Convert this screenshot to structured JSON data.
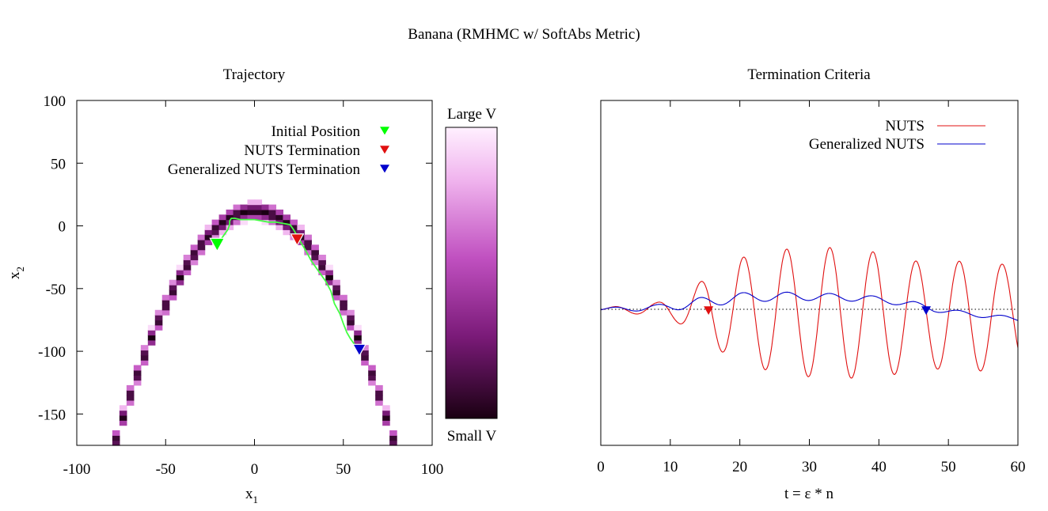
{
  "suptitle": "Banana (RMHMC w/ SoftAbs Metric)",
  "colors": {
    "nuts": "#e01010",
    "generalized": "#0000cc",
    "initial": "#00ff00",
    "trajectory": "#44ff44"
  },
  "chart_data": [
    {
      "type": "heatmap",
      "title": "Trajectory",
      "xlabel": "x",
      "xlabel_sub": "1",
      "ylabel": "x",
      "ylabel_sub": "2",
      "xlim": [
        -100,
        100
      ],
      "ylim": [
        -175,
        100
      ],
      "xticks": [
        -100,
        -50,
        0,
        50,
        100
      ],
      "yticks": [
        100,
        50,
        0,
        -50,
        -100,
        -150
      ],
      "density": {
        "model": "banana",
        "ridge": "x2 = 12 - 0.03 * x1^2",
        "band_half_width": 8,
        "grid_step": 4
      },
      "colorbar": {
        "top_label": "Large V",
        "bottom_label": "Small V"
      },
      "legend": {
        "position": "top-right",
        "entries": [
          {
            "label": "Initial Position",
            "color_key": "initial"
          },
          {
            "label": "NUTS Termination",
            "color_key": "nuts"
          },
          {
            "label": "Generalized NUTS Termination",
            "color_key": "generalized"
          }
        ]
      },
      "trajectory": [
        [
          -21,
          -15
        ],
        [
          -18,
          -9
        ],
        [
          -15,
          -3
        ],
        [
          -14,
          1
        ],
        [
          -14,
          4
        ],
        [
          -13,
          6
        ],
        [
          -11,
          6
        ],
        [
          -8,
          5
        ],
        [
          -4,
          5
        ],
        [
          0,
          5
        ],
        [
          4,
          4
        ],
        [
          8,
          3
        ],
        [
          12,
          3
        ],
        [
          16,
          2
        ],
        [
          20,
          1
        ],
        [
          22,
          -3
        ],
        [
          24,
          -8
        ],
        [
          26,
          -13
        ],
        [
          29,
          -20
        ],
        [
          32,
          -28
        ],
        [
          36,
          -36
        ],
        [
          40,
          -44
        ],
        [
          43,
          -52
        ],
        [
          45,
          -62
        ],
        [
          48,
          -70
        ],
        [
          50,
          -78
        ],
        [
          52,
          -85
        ],
        [
          54,
          -90
        ],
        [
          57,
          -96
        ],
        [
          59,
          -100
        ]
      ],
      "markers": {
        "initial": [
          -21,
          -15
        ],
        "nuts": [
          24,
          -11
        ],
        "generalized": [
          59,
          -99
        ]
      }
    },
    {
      "type": "line",
      "title": "Termination Criteria",
      "xlabel": "t = ε * n",
      "xlim": [
        0,
        60
      ],
      "xticks": [
        0,
        10,
        20,
        30,
        40,
        50,
        60
      ],
      "ylim": [
        -1.5,
        1.5
      ],
      "zero_line": true,
      "legend": {
        "position": "top-right"
      },
      "series": [
        {
          "name": "NUTS",
          "color_key": "nuts",
          "period": 6.2,
          "phase_t": 0.4,
          "amplitude_points": [
            [
              0,
              0.02
            ],
            [
              3,
              0.05
            ],
            [
              8,
              0.1
            ],
            [
              11,
              0.2
            ],
            [
              13.5,
              0.35
            ],
            [
              16,
              0.55
            ],
            [
              20,
              0.8
            ],
            [
              26,
              0.95
            ],
            [
              33,
              1.0
            ],
            [
              40,
              0.95
            ],
            [
              47,
              0.8
            ],
            [
              54,
              0.85
            ],
            [
              60,
              0.75
            ]
          ],
          "offset_points": [
            [
              0,
              0
            ],
            [
              15,
              0
            ],
            [
              30,
              -0.05
            ],
            [
              45,
              -0.1
            ],
            [
              60,
              -0.1
            ]
          ]
        },
        {
          "name": "Generalized NUTS",
          "color_key": "generalized",
          "period": 6.2,
          "phase_t": 0.4,
          "amplitude_points": [
            [
              0,
              0.02
            ],
            [
              8,
              0.05
            ],
            [
              14,
              0.08
            ],
            [
              30,
              0.06
            ],
            [
              46,
              0.04
            ],
            [
              60,
              0.03
            ]
          ],
          "offset_points": [
            [
              0,
              0
            ],
            [
              8,
              0.02
            ],
            [
              13,
              0.08
            ],
            [
              20,
              0.18
            ],
            [
              28,
              0.2
            ],
            [
              38,
              0.17
            ],
            [
              45,
              0.08
            ],
            [
              48,
              0
            ],
            [
              52,
              -0.06
            ],
            [
              60,
              -0.15
            ]
          ]
        }
      ],
      "markers": {
        "nuts": [
          15.5,
          -0.02
        ],
        "generalized": [
          46.8,
          -0.02
        ]
      }
    }
  ]
}
